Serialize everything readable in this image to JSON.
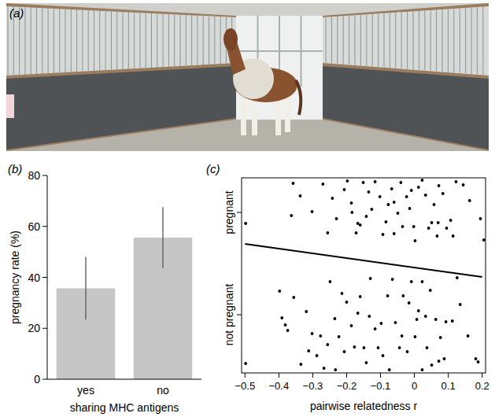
{
  "photo": {
    "label": "(a)"
  },
  "chart_data": [
    {
      "type": "bar",
      "title": "(b)",
      "x_label": "sharing MHC antigens",
      "y_label": "pregnancy rate (%)",
      "categories": [
        "yes",
        "no"
      ],
      "values": [
        35.7,
        55.6
      ],
      "errors": [
        12.3,
        12
      ],
      "color": "#c6c6c6",
      "ylim": [
        0,
        80
      ],
      "yticks": [
        0,
        20,
        40,
        60,
        80
      ]
    },
    {
      "type": "scatter",
      "title": "(c)",
      "x_label": "pairwise relatedness r",
      "xlim": [
        -0.51,
        0.21
      ],
      "xticks": [
        {
          "value": -0.5,
          "label": "−0.5"
        },
        {
          "value": -0.4,
          "label": "−0.4"
        },
        {
          "value": -0.3,
          "label": "−0.3"
        },
        {
          "value": -0.2,
          "label": "−0.2"
        },
        {
          "value": -0.1,
          "label": "−0.1"
        },
        0,
        0.1,
        0.2
      ],
      "ylim": [
        0,
        248
      ],
      "yticks": [
        {
          "value": 74,
          "label": "not pregnant"
        },
        {
          "value": 204,
          "label": "pregnant"
        }
      ],
      "series": [
        {
          "type": "scatter",
          "marker": "circle",
          "color": "#000000",
          "x": [
            -0.498,
            -0.363,
            -0.358,
            -0.337,
            -0.302,
            -0.27,
            -0.256,
            -0.242,
            -0.23,
            -0.207,
            -0.198,
            -0.186,
            -0.172,
            -0.167,
            -0.151,
            -0.142,
            -0.135,
            -0.126,
            -0.116,
            -0.102,
            -0.093,
            -0.084,
            -0.077,
            -0.067,
            -0.06,
            -0.049,
            -0.04,
            -0.035,
            -0.023,
            -0.014,
            -0.009,
            -0.002,
            0.002,
            0.012,
            0.023,
            0.033,
            0.042,
            0.051,
            0.058,
            0.067,
            0.072,
            0.084,
            0.095,
            0.107,
            0.114,
            0.123,
            0.144,
            0.163,
            0.195,
            0.205,
            0.07,
            -0.184,
            -0.16,
            -0.06,
            -0.498,
            -0.398,
            -0.391,
            -0.381,
            -0.374,
            -0.356,
            -0.335,
            -0.319,
            -0.312,
            -0.302,
            -0.288,
            -0.277,
            -0.267,
            -0.256,
            -0.249,
            -0.235,
            -0.223,
            -0.214,
            -0.207,
            -0.2,
            -0.186,
            -0.177,
            -0.167,
            -0.16,
            -0.149,
            -0.142,
            -0.133,
            -0.13,
            -0.116,
            -0.107,
            -0.098,
            -0.093,
            -0.079,
            -0.074,
            -0.065,
            -0.056,
            -0.044,
            -0.037,
            -0.033,
            -0.021,
            -0.016,
            -0.009,
            0.002,
            0.007,
            0.012,
            0.023,
            0.033,
            0.037,
            0.047,
            0.051,
            0.063,
            0.072,
            0.077,
            0.088,
            0.093,
            0.112,
            0.126,
            0.135,
            0.158,
            0.181,
            0.188,
            0.023,
            -0.233
          ],
          "values": [
            190,
            200,
            241,
            225,
            205,
            240,
            178,
            222,
            196,
            233,
            244,
            216,
            178,
            190,
            242,
            199,
            230,
            208,
            243,
            224,
            176,
            192,
            214,
            234,
            177,
            203,
            242,
            186,
            224,
            209,
            232,
            186,
            168,
            236,
            245,
            226,
            184,
            191,
            214,
            174,
            238,
            228,
            184,
            194,
            174,
            243,
            239,
            219,
            196,
            169,
            191,
            204,
            188,
            217,
            12,
            104,
            70,
            61,
            54,
            96,
            11,
            78,
            28,
            50,
            22,
            47,
            6,
            36,
            116,
            69,
            46,
            101,
            27,
            90,
            60,
            33,
            76,
            97,
            32,
            13,
            72,
            120,
            56,
            32,
            63,
            22,
            98,
            4,
            119,
            64,
            32,
            47,
            98,
            27,
            89,
            116,
            46,
            68,
            79,
            4,
            72,
            32,
            105,
            10,
            68,
            15,
            45,
            18,
            65,
            66,
            121,
            87,
            47,
            18,
            14,
            116,
            4
          ]
        },
        {
          "type": "line",
          "line_style": "solid",
          "color": "#000000",
          "x": [
            -0.5,
            0.2
          ],
          "values": [
            164,
            122
          ]
        }
      ]
    }
  ]
}
